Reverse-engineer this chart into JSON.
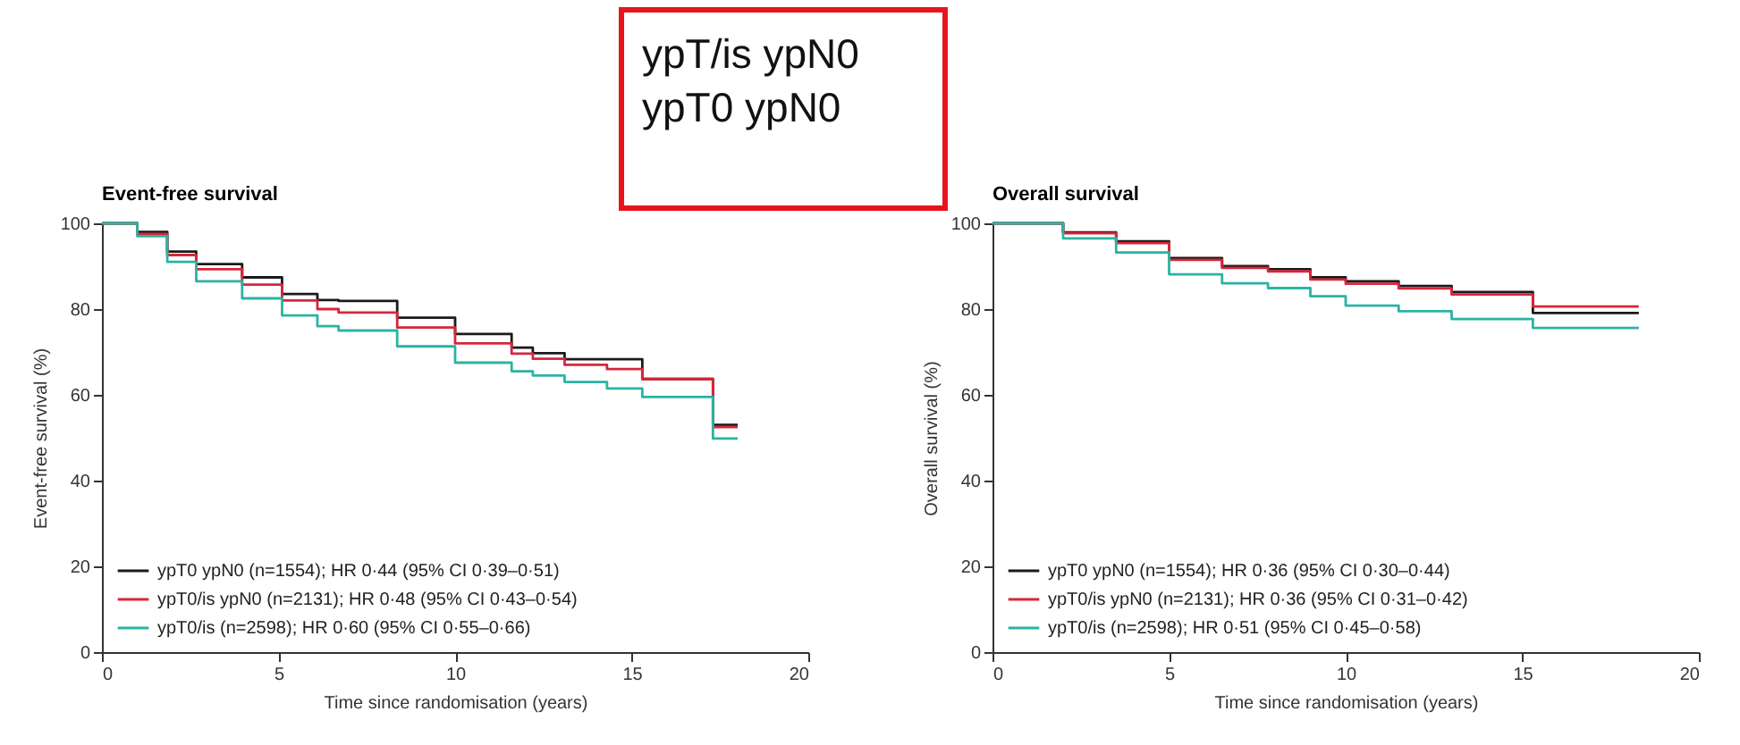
{
  "chart_data": [
    {
      "type": "step",
      "title": "Event-free survival",
      "xlabel": "Time since randomisation (years)",
      "ylabel": "Event-free survival (%)",
      "annotations": [
        "ypT/is ypN0",
        "ypT0 ypN0"
      ],
      "xlim": [
        0,
        20
      ],
      "ylim": [
        0,
        100
      ],
      "xticks": [
        0,
        5,
        10,
        15,
        20
      ],
      "yticks": [
        0,
        20,
        40,
        60,
        80,
        100
      ],
      "legend": "bottom left",
      "grid": false,
      "series": [
        {
          "name": "ypT0 ypN0 (n=1554); HR 0·44 (95% CI 0·39–0·51)",
          "color": "#1a1a1a",
          "x": [
            0,
            0.5,
            1,
            1.85,
            2.67,
            3.97,
            5.1,
            6.1,
            6.7,
            8.36,
            10,
            11.6,
            12.2,
            13.1,
            15.3,
            17.3,
            18
          ],
          "values": [
            100,
            100,
            98,
            93.4,
            90.5,
            87.4,
            83.5,
            82.1,
            81.9,
            78,
            74.2,
            71,
            69.7,
            68.3,
            63.7,
            53,
            53
          ]
        },
        {
          "name": "ypT0/is ypN0 (n=2131); HR 0·48 (95% CI 0·43–0·54)",
          "color": "#d6263c",
          "x": [
            0,
            0.5,
            1,
            1.85,
            2.67,
            3.97,
            5.1,
            6.1,
            6.7,
            8.36,
            10,
            11.6,
            12.2,
            13.1,
            14.3,
            15.3,
            17.3,
            18
          ],
          "values": [
            100,
            100,
            97.5,
            92.6,
            89.3,
            85.7,
            82,
            80,
            79.2,
            75.7,
            72,
            69.6,
            68.4,
            67,
            66,
            63.7,
            52.5,
            52.5
          ]
        },
        {
          "name": "ypT0/is (n=2598); HR 0·60 (95% CI 0·55–0·66)",
          "color": "#2bb3a3",
          "x": [
            0,
            0.5,
            1,
            1.85,
            2.67,
            3.97,
            5.1,
            6.1,
            6.7,
            8.36,
            10,
            11.6,
            12.2,
            13.1,
            14.3,
            15.3,
            17.3,
            18
          ],
          "values": [
            100,
            100,
            97,
            91,
            86.5,
            82.5,
            78.5,
            76,
            75,
            71.3,
            67.5,
            65.5,
            64.5,
            63,
            61.5,
            59.5,
            49.8,
            49.8
          ]
        }
      ]
    },
    {
      "type": "step",
      "title": "Overall survival",
      "xlabel": "Time since randomisation (years)",
      "ylabel": "Overall survival (%)",
      "xlim": [
        0,
        20
      ],
      "ylim": [
        0,
        100
      ],
      "xticks": [
        0,
        5,
        10,
        15,
        20
      ],
      "yticks": [
        0,
        20,
        40,
        60,
        80,
        100
      ],
      "legend": "bottom left",
      "grid": false,
      "series": [
        {
          "name": "ypT0 ypN0 (n=1554); HR 0·36 (95% CI 0·30–0·44)",
          "color": "#1a1a1a",
          "x": [
            0,
            0.7,
            2,
            3.5,
            5,
            6.5,
            7.8,
            9,
            10,
            11.5,
            13,
            15.3,
            18.3
          ],
          "values": [
            100,
            100,
            97.9,
            95.8,
            91.9,
            90,
            89.3,
            87.4,
            86.5,
            85.4,
            84,
            79.1,
            79.1
          ]
        },
        {
          "name": "ypT0/is ypN0 (n=2131); HR 0·36 (95% CI 0·31–0·42)",
          "color": "#d6263c",
          "x": [
            0,
            0.7,
            2,
            3.5,
            5,
            6.5,
            7.8,
            9,
            10,
            11.5,
            13,
            15.3,
            18.3
          ],
          "values": [
            100,
            100,
            97.7,
            95.4,
            91.5,
            89.6,
            88.8,
            86.9,
            85.9,
            84.8,
            83.4,
            80.6,
            80.6
          ]
        },
        {
          "name": "ypT0/is (n=2598); HR 0·51 (95% CI 0·45–0·58)",
          "color": "#2bb3a3",
          "x": [
            0,
            0.7,
            2,
            3.5,
            5,
            6.5,
            7.8,
            9,
            10,
            11.5,
            13,
            15.3,
            18.3
          ],
          "values": [
            100,
            100,
            96.5,
            93.2,
            88.1,
            86,
            84.9,
            83,
            80.8,
            79.5,
            77.7,
            75.6,
            75.6
          ]
        }
      ]
    }
  ]
}
